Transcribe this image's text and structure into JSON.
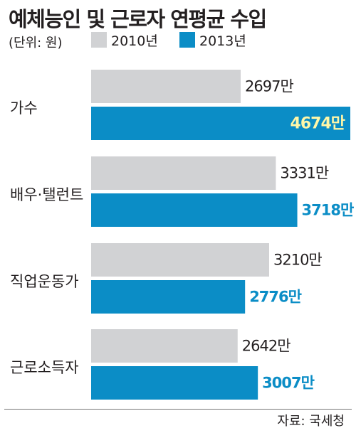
{
  "title": "예체능인 및 근로자 연평균 수입",
  "unit_label": "(단위: 원)",
  "source": "자료: 국세청",
  "colors": {
    "series_2010": "#d1d2d4",
    "series_2013": "#0b8dc6",
    "highlight_label": "#fff7a8",
    "label_2013": "#0b8dc6"
  },
  "chart_data": {
    "type": "bar",
    "orientation": "horizontal",
    "categories": [
      "가수",
      "배우·탤런트",
      "직업운동가",
      "근로소득자"
    ],
    "series": [
      {
        "name": "2010년",
        "values": [
          2697,
          3331,
          3210,
          2642
        ],
        "labels": [
          "2697만",
          "3331만",
          "3210만",
          "2642만"
        ]
      },
      {
        "name": "2013년",
        "values": [
          4674,
          3718,
          2776,
          3007
        ],
        "labels": [
          "4674만",
          "3718만",
          "2776만",
          "3007만"
        ]
      }
    ],
    "xlim": [
      0,
      4674
    ],
    "xlabel": "",
    "ylabel": "",
    "legend": "top",
    "grid": false
  }
}
